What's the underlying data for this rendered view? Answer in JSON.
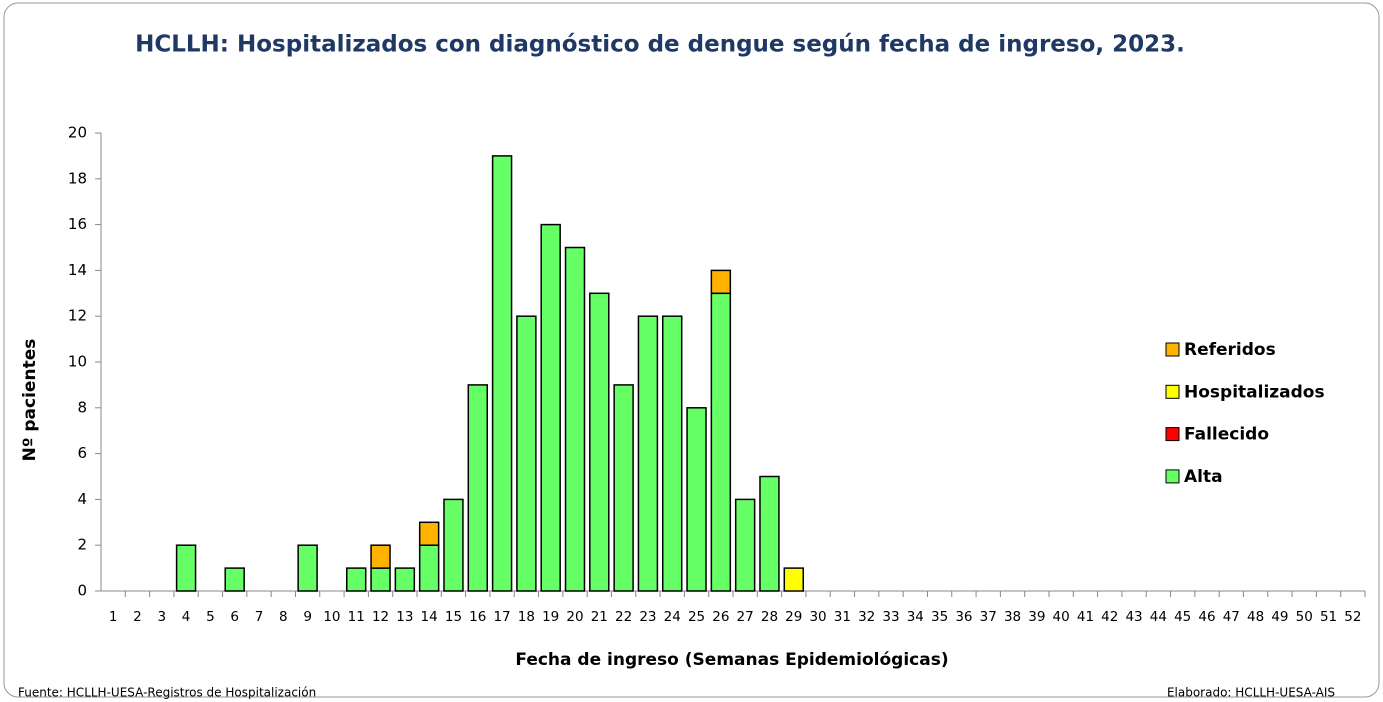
{
  "chart_data": {
    "type": "stacked_bar",
    "title": "HCLLH: Hospitalizados con diagnóstico de dengue según fecha de ingreso, 2023.",
    "x_label": "Fecha de ingreso (Semanas Epidemiológicas)",
    "y_label": "Nº pacientes",
    "source": "Fuente: HCLLH-UESA-Registros de Hospitalización",
    "credit": "Elaborado: HCLLH-UESA-AIS",
    "categories": [
      "1",
      "2",
      "3",
      "4",
      "5",
      "6",
      "7",
      "8",
      "9",
      "10",
      "11",
      "12",
      "13",
      "14",
      "15",
      "16",
      "17",
      "18",
      "19",
      "20",
      "21",
      "22",
      "23",
      "24",
      "25",
      "26",
      "27",
      "28",
      "29",
      "30",
      "31",
      "32",
      "33",
      "34",
      "35",
      "36",
      "37",
      "38",
      "39",
      "40",
      "41",
      "42",
      "43",
      "44",
      "45",
      "46",
      "47",
      "48",
      "49",
      "50",
      "51",
      "52"
    ],
    "series": [
      {
        "name": "Alta",
        "color": "#66ff66",
        "values": [
          0,
          0,
          0,
          2,
          0,
          1,
          0,
          0,
          2,
          0,
          1,
          1,
          1,
          2,
          4,
          9,
          19,
          12,
          16,
          15,
          13,
          9,
          12,
          12,
          8,
          13,
          4,
          5,
          0,
          0,
          0,
          0,
          0,
          0,
          0,
          0,
          0,
          0,
          0,
          0,
          0,
          0,
          0,
          0,
          0,
          0,
          0,
          0,
          0,
          0,
          0,
          0
        ]
      },
      {
        "name": "Fallecido",
        "color": "#ff0000",
        "values": [
          0,
          0,
          0,
          0,
          0,
          0,
          0,
          0,
          0,
          0,
          0,
          0,
          0,
          0,
          0,
          0,
          0,
          0,
          0,
          0,
          0,
          0,
          0,
          0,
          0,
          0,
          0,
          0,
          0,
          0,
          0,
          0,
          0,
          0,
          0,
          0,
          0,
          0,
          0,
          0,
          0,
          0,
          0,
          0,
          0,
          0,
          0,
          0,
          0,
          0,
          0,
          0
        ]
      },
      {
        "name": "Hospitalizados",
        "color": "#ffff00",
        "values": [
          0,
          0,
          0,
          0,
          0,
          0,
          0,
          0,
          0,
          0,
          0,
          0,
          0,
          0,
          0,
          0,
          0,
          0,
          0,
          0,
          0,
          0,
          0,
          0,
          0,
          0,
          0,
          0,
          1,
          0,
          0,
          0,
          0,
          0,
          0,
          0,
          0,
          0,
          0,
          0,
          0,
          0,
          0,
          0,
          0,
          0,
          0,
          0,
          0,
          0,
          0,
          0
        ]
      },
      {
        "name": "Referidos",
        "color": "#ffb300",
        "values": [
          0,
          0,
          0,
          0,
          0,
          0,
          0,
          0,
          0,
          0,
          0,
          1,
          0,
          1,
          0,
          0,
          0,
          0,
          0,
          0,
          0,
          0,
          0,
          0,
          0,
          1,
          0,
          0,
          0,
          0,
          0,
          0,
          0,
          0,
          0,
          0,
          0,
          0,
          0,
          0,
          0,
          0,
          0,
          0,
          0,
          0,
          0,
          0,
          0,
          0,
          0,
          0
        ]
      }
    ],
    "ylim": [
      0,
      20
    ],
    "yticks": [
      0,
      2,
      4,
      6,
      8,
      10,
      12,
      14,
      16,
      18,
      20
    ],
    "legend": "right"
  }
}
